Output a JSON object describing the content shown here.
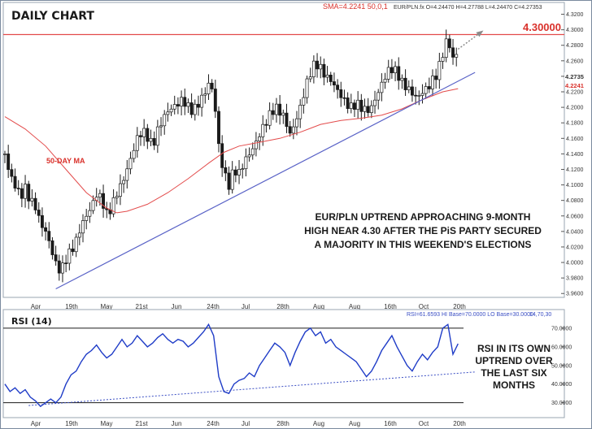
{
  "chart_data": [
    {
      "type": "candlestick",
      "title": "DAILY CHART",
      "header": {
        "sma_text": "SMA=4.2241  50,0,1",
        "ohlc_text": "EUR/PLN.fx O=4.24470 H=4.27788 L=4.24470 C=4.27353"
      },
      "resistance": {
        "value": 4.3,
        "label": "4.30000"
      },
      "last_price_label": "4.2735",
      "sma_label": "4.2241",
      "ma_label": "50-DAY MA",
      "annotation": "EUR/PLN UPTREND APPROACHING 9-MONTH HIGH NEAR 4.30 AFTER THE PiS PARTY SECURED A MAJORITY IN THIS WEEKEND'S ELECTIONS",
      "annotation_lines": [
        "EUR/PLN UPTREND APPROACHING 9-MONTH",
        "HIGH NEAR 4.30 AFTER THE PiS PARTY SECURED",
        "A MAJORITY IN THIS WEEKEND'S ELECTIONS"
      ],
      "ylim": [
        3.955,
        4.33
      ],
      "yticks": [
        "4.3200",
        "4.3000",
        "4.2800",
        "4.2600",
        "4.2400",
        "4.2200",
        "4.2000",
        "4.1800",
        "4.1600",
        "4.1400",
        "4.1200",
        "4.1000",
        "4.0800",
        "4.0600",
        "4.0400",
        "4.0200",
        "4.0000",
        "3.9800",
        "3.9600"
      ],
      "x_labels": [
        "Apr",
        "19th",
        "May",
        "21st",
        "Jun",
        "24th",
        "Jul",
        "28th",
        "Aug",
        "Aug",
        "16th",
        "Oct",
        "20th"
      ],
      "close_path": [
        [
          0,
          4.14
        ],
        [
          3,
          4.112
        ],
        [
          6,
          4.1
        ],
        [
          9,
          4.085
        ],
        [
          12,
          4.095
        ],
        [
          15,
          4.08
        ],
        [
          18,
          4.072
        ],
        [
          21,
          4.05
        ],
        [
          24,
          4.04
        ],
        [
          27,
          4.02
        ],
        [
          30,
          3.998
        ],
        [
          33,
          3.988
        ],
        [
          36,
          4.005
        ],
        [
          39,
          4.015
        ],
        [
          42,
          4.028
        ],
        [
          45,
          4.048
        ],
        [
          48,
          4.06
        ],
        [
          51,
          4.072
        ],
        [
          54,
          4.088
        ],
        [
          57,
          4.082
        ],
        [
          60,
          4.062
        ],
        [
          63,
          4.072
        ],
        [
          66,
          4.09
        ],
        [
          69,
          4.102
        ],
        [
          72,
          4.12
        ],
        [
          75,
          4.14
        ],
        [
          78,
          4.16
        ],
        [
          81,
          4.17
        ],
        [
          84,
          4.162
        ],
        [
          87,
          4.15
        ],
        [
          90,
          4.17
        ],
        [
          93,
          4.185
        ],
        [
          96,
          4.195
        ],
        [
          99,
          4.2
        ],
        [
          102,
          4.205
        ],
        [
          105,
          4.21
        ],
        [
          108,
          4.2
        ],
        [
          111,
          4.195
        ],
        [
          114,
          4.205
        ],
        [
          117,
          4.215
        ],
        [
          120,
          4.23
        ],
        [
          123,
          4.22
        ],
        [
          126,
          4.15
        ],
        [
          129,
          4.115
        ],
        [
          132,
          4.1
        ],
        [
          135,
          4.12
        ],
        [
          138,
          4.115
        ],
        [
          141,
          4.13
        ],
        [
          144,
          4.14
        ],
        [
          147,
          4.15
        ],
        [
          150,
          4.165
        ],
        [
          153,
          4.178
        ],
        [
          156,
          4.19
        ],
        [
          159,
          4.2
        ],
        [
          162,
          4.195
        ],
        [
          165,
          4.185
        ],
        [
          168,
          4.165
        ],
        [
          171,
          4.18
        ],
        [
          174,
          4.2
        ],
        [
          177,
          4.225
        ],
        [
          180,
          4.245
        ],
        [
          183,
          4.258
        ],
        [
          186,
          4.25
        ],
        [
          189,
          4.24
        ],
        [
          192,
          4.235
        ],
        [
          195,
          4.225
        ],
        [
          198,
          4.215
        ],
        [
          201,
          4.205
        ],
        [
          204,
          4.2
        ],
        [
          207,
          4.205
        ],
        [
          210,
          4.2
        ],
        [
          213,
          4.195
        ],
        [
          216,
          4.2
        ],
        [
          219,
          4.215
        ],
        [
          222,
          4.23
        ],
        [
          225,
          4.245
        ],
        [
          228,
          4.25
        ],
        [
          231,
          4.245
        ],
        [
          234,
          4.232
        ],
        [
          237,
          4.225
        ],
        [
          240,
          4.218
        ],
        [
          243,
          4.212
        ],
        [
          246,
          4.22
        ],
        [
          249,
          4.225
        ],
        [
          252,
          4.235
        ],
        [
          255,
          4.245
        ],
        [
          258,
          4.27
        ],
        [
          261,
          4.29
        ],
        [
          264,
          4.262
        ],
        [
          267,
          4.273
        ]
      ],
      "sma_path": [
        [
          0,
          4.188
        ],
        [
          12,
          4.172
        ],
        [
          24,
          4.15
        ],
        [
          36,
          4.12
        ],
        [
          48,
          4.09
        ],
        [
          60,
          4.07
        ],
        [
          66,
          4.064
        ],
        [
          72,
          4.066
        ],
        [
          84,
          4.075
        ],
        [
          96,
          4.09
        ],
        [
          108,
          4.108
        ],
        [
          120,
          4.128
        ],
        [
          129,
          4.142
        ],
        [
          138,
          4.15
        ],
        [
          150,
          4.155
        ],
        [
          162,
          4.16
        ],
        [
          174,
          4.168
        ],
        [
          186,
          4.178
        ],
        [
          198,
          4.183
        ],
        [
          210,
          4.186
        ],
        [
          222,
          4.19
        ],
        [
          234,
          4.198
        ],
        [
          246,
          4.21
        ],
        [
          258,
          4.22
        ],
        [
          267,
          4.2241
        ]
      ],
      "trendline": {
        "x": [
          30,
          277
        ],
        "y": [
          3.966,
          4.245
        ]
      },
      "projection": {
        "x": [
          267,
          280
        ],
        "y": [
          4.275,
          4.296
        ]
      },
      "colors": {
        "up": "#ffffff",
        "down": "#1a1a1a",
        "wick": "#1a1a1a",
        "sma": "#e34b4b",
        "resistance": "#e34b4b",
        "trendline": "#5a63c7"
      }
    },
    {
      "type": "line",
      "title": "RSI (14)",
      "header_text": "RSI=61.6593  HI Base=70.0000  LO Base=30.0000",
      "params_text": "14,70,30",
      "ylim": [
        22,
        80
      ],
      "yticks": [
        "70.0000",
        "60.0000",
        "50.0000",
        "40.0000",
        "30.0000"
      ],
      "hi_base": 70,
      "lo_base": 30,
      "x_labels": [
        "Apr",
        "19th",
        "May",
        "21st",
        "Jun",
        "24th",
        "Jul",
        "28th",
        "Aug",
        "Aug",
        "16th",
        "Oct",
        "20th"
      ],
      "rsi_path": [
        [
          0,
          40
        ],
        [
          3,
          36
        ],
        [
          6,
          38
        ],
        [
          9,
          35
        ],
        [
          12,
          37
        ],
        [
          15,
          33
        ],
        [
          18,
          31
        ],
        [
          21,
          28
        ],
        [
          24,
          30
        ],
        [
          27,
          32
        ],
        [
          30,
          30
        ],
        [
          33,
          33
        ],
        [
          36,
          40
        ],
        [
          39,
          45
        ],
        [
          42,
          47
        ],
        [
          45,
          52
        ],
        [
          48,
          56
        ],
        [
          51,
          58
        ],
        [
          54,
          61
        ],
        [
          57,
          57
        ],
        [
          60,
          54
        ],
        [
          63,
          56
        ],
        [
          66,
          60
        ],
        [
          69,
          64
        ],
        [
          72,
          60
        ],
        [
          75,
          62
        ],
        [
          78,
          66
        ],
        [
          81,
          63
        ],
        [
          84,
          60
        ],
        [
          87,
          62
        ],
        [
          90,
          65
        ],
        [
          93,
          67
        ],
        [
          96,
          64
        ],
        [
          99,
          62
        ],
        [
          102,
          64
        ],
        [
          105,
          63
        ],
        [
          108,
          60
        ],
        [
          111,
          62
        ],
        [
          114,
          65
        ],
        [
          117,
          68
        ],
        [
          120,
          72
        ],
        [
          123,
          66
        ],
        [
          126,
          44
        ],
        [
          129,
          36
        ],
        [
          132,
          35
        ],
        [
          135,
          40
        ],
        [
          138,
          42
        ],
        [
          141,
          43
        ],
        [
          144,
          46
        ],
        [
          147,
          44
        ],
        [
          150,
          50
        ],
        [
          153,
          54
        ],
        [
          156,
          58
        ],
        [
          159,
          62
        ],
        [
          162,
          60
        ],
        [
          165,
          57
        ],
        [
          168,
          50
        ],
        [
          171,
          57
        ],
        [
          174,
          63
        ],
        [
          177,
          68
        ],
        [
          180,
          70
        ],
        [
          183,
          66
        ],
        [
          186,
          68
        ],
        [
          189,
          62
        ],
        [
          192,
          64
        ],
        [
          195,
          60
        ],
        [
          198,
          58
        ],
        [
          201,
          56
        ],
        [
          204,
          54
        ],
        [
          207,
          52
        ],
        [
          210,
          48
        ],
        [
          213,
          44
        ],
        [
          216,
          47
        ],
        [
          219,
          52
        ],
        [
          222,
          58
        ],
        [
          225,
          62
        ],
        [
          228,
          66
        ],
        [
          231,
          60
        ],
        [
          234,
          55
        ],
        [
          237,
          50
        ],
        [
          240,
          47
        ],
        [
          243,
          52
        ],
        [
          246,
          56
        ],
        [
          249,
          53
        ],
        [
          252,
          57
        ],
        [
          255,
          60
        ],
        [
          258,
          70
        ],
        [
          261,
          72
        ],
        [
          264,
          56
        ],
        [
          267,
          61.66
        ]
      ],
      "trendline": {
        "x": [
          14,
          277
        ],
        "y": [
          28.5,
          46.5
        ]
      },
      "annotation_lines": [
        "RSI IN ITS OWN",
        "UPTREND OVER",
        "THE LAST SIX",
        "MONTHS"
      ],
      "colors": {
        "line": "#1f3cc7",
        "trendline": "#3b4fc4",
        "base": "#1a1a1a"
      }
    }
  ]
}
